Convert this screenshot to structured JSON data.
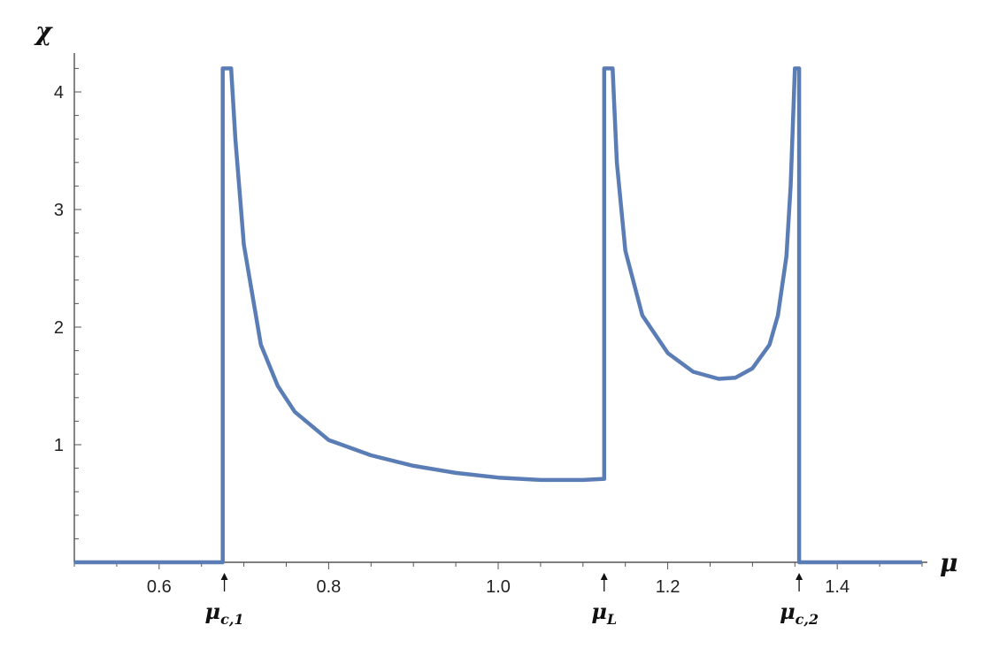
{
  "chart_data": {
    "type": "line",
    "xlabel": "μ",
    "ylabel": "χ",
    "xlim": [
      0.5,
      1.5
    ],
    "ylim": [
      0,
      4.2
    ],
    "x_ticks": [
      0.6,
      0.8,
      1.0,
      1.2,
      1.4
    ],
    "x_tick_labels": [
      "0.6",
      "0.8",
      "1.0",
      "1.2",
      "1.4"
    ],
    "y_ticks": [
      1,
      2,
      3,
      4
    ],
    "y_tick_labels": [
      "1",
      "2",
      "3",
      "4"
    ],
    "grid": false,
    "line_color": "#5b7db5",
    "series": [
      {
        "points": [
          [
            0.5,
            0
          ],
          [
            0.675,
            0
          ],
          [
            0.675,
            4.2
          ],
          [
            0.685,
            4.2
          ],
          [
            0.69,
            3.6
          ],
          [
            0.7,
            2.7
          ],
          [
            0.72,
            1.85
          ],
          [
            0.74,
            1.5
          ],
          [
            0.76,
            1.28
          ],
          [
            0.8,
            1.04
          ],
          [
            0.85,
            0.91
          ],
          [
            0.9,
            0.82
          ],
          [
            0.95,
            0.76
          ],
          [
            1.0,
            0.72
          ],
          [
            1.05,
            0.7
          ],
          [
            1.1,
            0.7
          ],
          [
            1.125,
            0.71
          ],
          [
            1.125,
            4.2
          ],
          [
            1.135,
            4.2
          ],
          [
            1.14,
            3.4
          ],
          [
            1.15,
            2.65
          ],
          [
            1.17,
            2.1
          ],
          [
            1.2,
            1.78
          ],
          [
            1.23,
            1.62
          ],
          [
            1.26,
            1.56
          ],
          [
            1.28,
            1.57
          ],
          [
            1.3,
            1.65
          ],
          [
            1.32,
            1.85
          ],
          [
            1.33,
            2.1
          ],
          [
            1.34,
            2.6
          ],
          [
            1.345,
            3.2
          ],
          [
            1.35,
            4.2
          ],
          [
            1.355,
            4.2
          ],
          [
            1.355,
            0
          ],
          [
            1.5,
            0
          ]
        ]
      }
    ],
    "annotations": [
      {
        "x": 0.677,
        "label": "μ",
        "sub": "c,1"
      },
      {
        "x": 1.125,
        "label": "μ",
        "sub": "L"
      },
      {
        "x": 1.355,
        "label": "μ",
        "sub": "c,2"
      }
    ]
  }
}
